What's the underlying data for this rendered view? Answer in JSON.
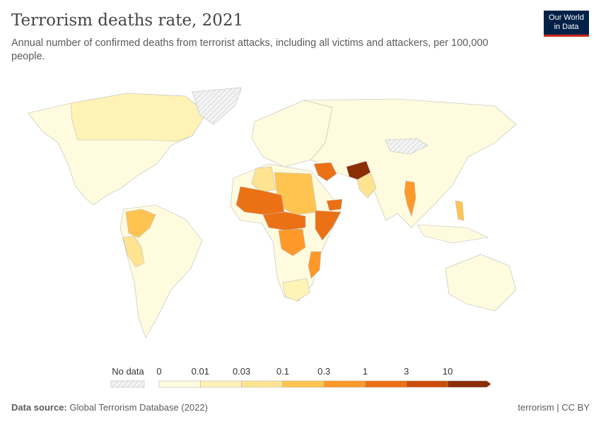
{
  "header": {
    "title": "Terrorism deaths rate, 2021",
    "subtitle": "Annual number of confirmed deaths from terrorist attacks, including all victims and attackers, per 100,000 people.",
    "logo_line1": "Our World",
    "logo_line2": "in Data"
  },
  "legend": {
    "no_data_label": "No data",
    "bins": [
      "0",
      "0.01",
      "0.03",
      "0.1",
      "0.3",
      "1",
      "3",
      "10"
    ],
    "colors": [
      "#fffbde",
      "#fff3b6",
      "#fee391",
      "#fec44f",
      "#fe9929",
      "#ec7014",
      "#cc4c02",
      "#8c2d04"
    ],
    "no_data_color": "#e9e9e9"
  },
  "footer": {
    "source_label": "Data source:",
    "source": "Global Terrorism Database (2022)",
    "right": "terrorism | CC BY"
  }
}
